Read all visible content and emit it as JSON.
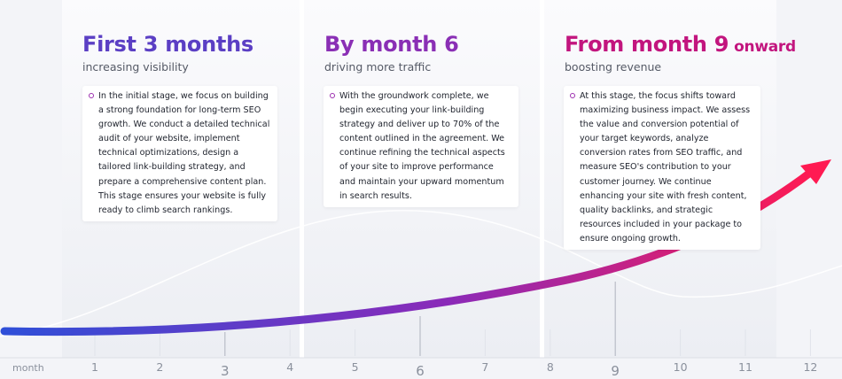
{
  "stages": [
    {
      "title": "First 3 months",
      "title_suffix": "",
      "subtitle": "increasing visibility",
      "text": "In the initial stage, we focus on building a strong foundation for long-term SEO growth. We conduct a detailed technical audit of your website, implement technical optimizations, design a tailored link-building strategy, and prepare a comprehensive content plan. This stage ensures your website is fully ready to climb search rankings.",
      "color": "#5b3fc4"
    },
    {
      "title": "By month 6",
      "title_suffix": "",
      "subtitle": "driving more traffic",
      "text": "With the groundwork complete, we begin executing your link-building strategy and deliver up to 70% of the content outlined in the agreement. We continue refining the technical aspects of your site to improve performance and maintain your upward momentum in search results.",
      "color": "#8a2fb5"
    },
    {
      "title": "From month 9",
      "title_suffix": "onward",
      "subtitle": "boosting revenue",
      "text": "At this stage, the focus shifts toward maximizing business impact. We assess the value and conversion potential of your target keywords, analyze conversion rates from SEO traffic, and measure SEO's contribution to your customer journey. We continue enhancing your site with fresh content, quality backlinks, and strategic resources included in your package to ensure ongoing growth.",
      "color": "#c2157e"
    }
  ],
  "axis": {
    "label": "month",
    "ticks": [
      "1",
      "2",
      "3",
      "4",
      "5",
      "6",
      "7",
      "8",
      "9",
      "10",
      "11",
      "12"
    ],
    "highlighted": [
      "3",
      "6",
      "9"
    ]
  },
  "colors": {
    "curve_start": "#2f4fd8",
    "curve_mid": "#8b2ab8",
    "curve_end": "#ff1a52",
    "background": "#f3f4f8"
  }
}
